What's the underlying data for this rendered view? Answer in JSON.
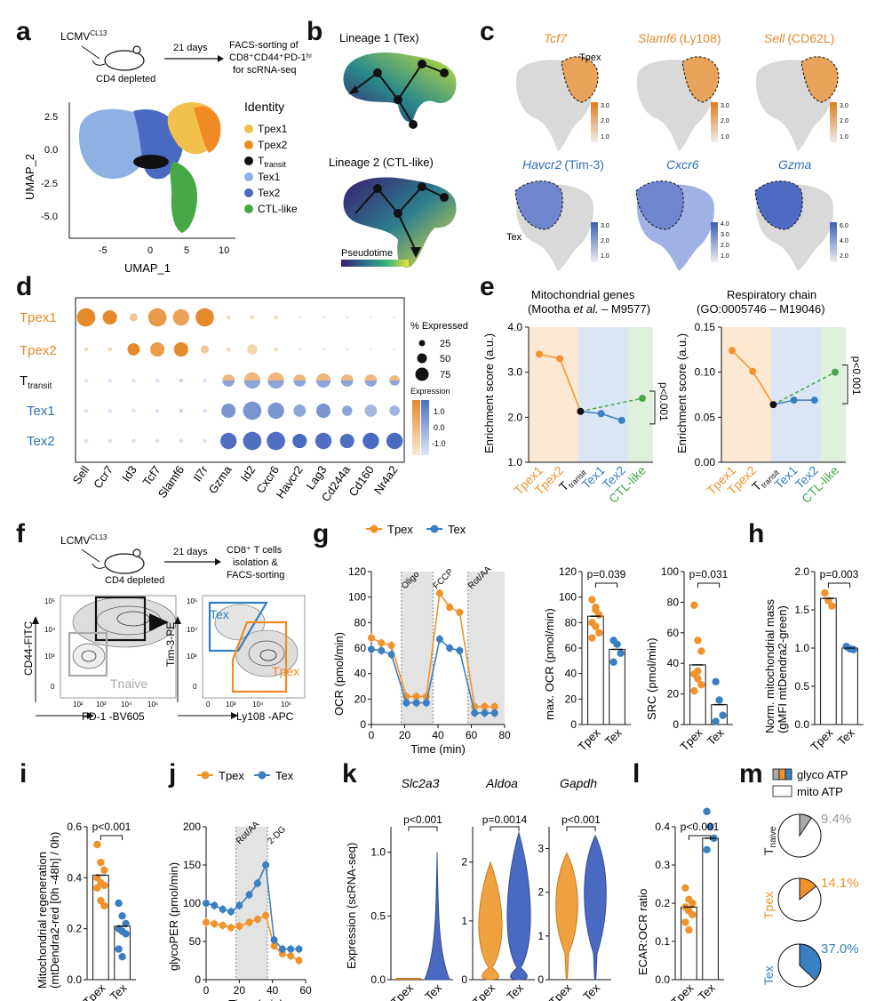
{
  "colors": {
    "tpex": "#f0932b",
    "tpex1": "#f2c04c",
    "tpex2": "#ef8a24",
    "ttransit": "#111111",
    "tex1": "#8fb0e3",
    "tex2": "#4a69c0",
    "ctl": "#46a847",
    "texBlue": "#3a7fc1"
  },
  "panels": [
    "a",
    "b",
    "c",
    "d",
    "e",
    "f",
    "g",
    "h",
    "i",
    "j",
    "k",
    "l",
    "m"
  ],
  "a": {
    "infection": "LCMV",
    "infection_sup": "CL13",
    "days": "21 days",
    "depletion": "CD4 depleted",
    "sorting_l1": "FACS-sorting of",
    "sorting_l2": "CD8⁺CD44⁺PD-1ʰⁱ",
    "sorting_l3": "for scRNA-seq",
    "xlabel": "UMAP_1",
    "ylabel": "UMAP_2",
    "xticks": [
      "-5",
      "0",
      "5",
      "10"
    ],
    "yticks": [
      "2.5",
      "0.0",
      "-2.5",
      "-5.0"
    ],
    "legend_title": "Identity",
    "legend": [
      "Tpex1",
      "Tpex2",
      "T",
      "Tex1",
      "Tex2",
      "CTL-like"
    ],
    "legend_sub": "transit"
  },
  "b": {
    "title1": "Lineage 1 (Tex)",
    "title2": "Lineage 2 (CTL-like)",
    "colorbar": "Pseudotime"
  },
  "c": {
    "genes_top": [
      "Tcf7",
      "Slamf6",
      "Sell"
    ],
    "genes_top_extra": [
      "",
      "(Ly108)",
      "(CD62L)"
    ],
    "genes_bottom": [
      "Havcr2",
      "Cxcr6",
      "Gzma"
    ],
    "genes_bottom_extra": [
      "(Tim-3)",
      "",
      ""
    ],
    "region_top": "Tpex",
    "region_bottom": "Tex",
    "scale_top": [
      "3.0",
      "2.0",
      "1.0"
    ],
    "scale_mid": [
      "3.0",
      "2.0",
      "1.0"
    ],
    "scale_right": [
      "3.0",
      "2.0",
      "1.0"
    ],
    "scale_b1": [
      "3.0",
      "2.0",
      "1.0"
    ],
    "scale_b2": [
      "4.0",
      "3.0",
      "2.0",
      "1.0"
    ],
    "scale_b3": [
      "6.0",
      "4.0",
      "2.0"
    ]
  },
  "d": {
    "rows": [
      "Tpex1",
      "Tpex2",
      "T",
      "Tex1",
      "Tex2"
    ],
    "row3_sub": "transit",
    "genes": [
      "Sell",
      "Ccr7",
      "Id3",
      "Tcf7",
      "Slamf6",
      "Il7r",
      "Gzma",
      "Id2",
      "Cxcr6",
      "Havcr2",
      "Lag3",
      "Cd244a",
      "Cd160",
      "Nr4a2"
    ],
    "legend_title": "% Expressed",
    "legend_sizes": [
      "25",
      "50",
      "75"
    ],
    "legend_expr": "Expression",
    "expr_ticks": [
      "1.0",
      "0.0",
      "-1.0"
    ]
  },
  "e": {
    "chart_data": [
      {
        "type": "line",
        "title": "Mitochondrial genes",
        "subtitle_pre": "(Mootha ",
        "subtitle_it": "et al.",
        "subtitle_post": " – M9577)",
        "ylabel": "Enrichment score (a.u.)",
        "ylim": [
          1.0,
          4.0
        ],
        "yticks": [
          "4.0",
          "3.0",
          "2.0",
          "1.0"
        ],
        "categories": [
          "Tpex1",
          "Tpex2",
          "T",
          "Tex1",
          "Tex2",
          "CTL-like"
        ],
        "values": [
          3.4,
          3.3,
          2.13,
          2.08,
          1.93,
          2.42
        ],
        "pvalue": "p<0.001"
      },
      {
        "type": "line",
        "title": "Respiratory chain",
        "subtitle": "(GO:0005746 – M19046)",
        "ylabel": "Enrichment score (a.u.)",
        "ylim": [
          0.0,
          0.15
        ],
        "yticks": [
          "0.15",
          "0.10",
          "0.05",
          "0.00"
        ],
        "categories": [
          "Tpex1",
          "Tpex2",
          "T",
          "Tex1",
          "Tex2",
          "CTL-like"
        ],
        "values": [
          0.124,
          0.101,
          0.064,
          0.069,
          0.069,
          0.1
        ],
        "pvalue": "p<0.001"
      }
    ],
    "cat_sub": "transit"
  },
  "f": {
    "infection": "LCMV",
    "infection_sup": "CL13",
    "days": "21 days",
    "depletion": "CD4 depleted",
    "sorting_l1": "CD8⁺ T cells",
    "sorting_l2": "isolation &",
    "sorting_l3": "FACS-sorting",
    "xlabel1": "PD-1 -BV605",
    "ylabel1": "CD44-FITC",
    "gate1": "Tnaive",
    "xlabel2": "Ly108 -APC",
    "ylabel2": "Tim-3-PE",
    "gate_tex": "Tex",
    "gate_tpex": "Tpex",
    "ticks": [
      "10²",
      "10³",
      "10⁴",
      "10⁵"
    ],
    "zero": "0"
  },
  "g": {
    "legend": [
      "Tpex",
      "Tex"
    ],
    "chart_data": {
      "type": "line",
      "xlabel": "Time (min)",
      "ylabel": "OCR (pmol/min)",
      "xlim": [
        0,
        80
      ],
      "ylim": [
        0,
        120
      ],
      "xticks": [
        "0",
        "20",
        "40",
        "60",
        "80"
      ],
      "yticks": [
        "0",
        "20",
        "40",
        "60",
        "80",
        "100",
        "120"
      ],
      "injections": [
        "Oligo",
        "FCCP",
        "Rot/AA"
      ],
      "x": [
        0,
        6,
        12,
        21,
        27,
        33,
        41,
        47,
        53,
        62,
        68,
        74
      ],
      "series": [
        {
          "name": "Tpex",
          "values": [
            68,
            64,
            62,
            22,
            22,
            22,
            103,
            92,
            88,
            14,
            14,
            14
          ]
        },
        {
          "name": "Tex",
          "values": [
            59,
            58,
            55,
            17,
            17,
            17,
            67,
            60,
            58,
            9,
            9,
            9
          ]
        }
      ]
    },
    "bar1": {
      "type": "bar",
      "ylabel": "max. OCR (pmol/min)",
      "ylim": [
        0,
        120
      ],
      "yticks": [
        "0",
        "20",
        "40",
        "60",
        "80",
        "100",
        "120"
      ],
      "categories": [
        "Tpex",
        "Tex"
      ],
      "values": [
        85,
        59
      ],
      "pvalue": "p=0.039"
    },
    "bar2": {
      "type": "bar",
      "ylabel": "SRC (pmol/min)",
      "ylim": [
        0,
        100
      ],
      "yticks": [
        "0",
        "20",
        "40",
        "60",
        "80",
        "100"
      ],
      "categories": [
        "Tpex",
        "Tex"
      ],
      "values": [
        39,
        13
      ],
      "pvalue": "p=0.031"
    }
  },
  "h": {
    "chart_data": {
      "type": "bar",
      "ylabel1": "Norm. mitochondrial mass",
      "ylabel2": "(gMFI mtDendra2-green)",
      "ylim": [
        0,
        2.0
      ],
      "yticks": [
        "0.0",
        "0.5",
        "1.0",
        "1.5",
        "2.0"
      ],
      "categories": [
        "Tpex",
        "Tex"
      ],
      "values": [
        1.65,
        1.0
      ],
      "pvalue": "p=0.003"
    }
  },
  "i": {
    "chart_data": {
      "type": "bar",
      "ylabel1": "Mitochondrial regeneration",
      "ylabel2": "(mtDendra2-red [0h -48h] / 0h)",
      "ylim": [
        0,
        0.6
      ],
      "yticks": [
        "0.0",
        "0.2",
        "0.4",
        "0.6"
      ],
      "categories": [
        "Tpex",
        "Tex"
      ],
      "values": [
        0.41,
        0.21
      ],
      "pvalue": "p<0.001"
    }
  },
  "j": {
    "legend": [
      "Tpex",
      "Tex"
    ],
    "chart_data": {
      "type": "line",
      "xlabel": "Time (min)",
      "ylabel": "glycoPER (pmol/min)",
      "xlim": [
        0,
        60
      ],
      "ylim": [
        0,
        200
      ],
      "xticks": [
        "0",
        "20",
        "40",
        "60"
      ],
      "yticks": [
        "0",
        "50",
        "100",
        "150",
        "200"
      ],
      "injections": [
        "Rot/AA",
        "2-DG"
      ],
      "x": [
        0,
        5,
        10,
        15,
        20,
        26,
        31,
        36,
        41,
        46,
        51,
        56
      ],
      "series": [
        {
          "name": "Tpex",
          "values": [
            75,
            73,
            71,
            68,
            70,
            75,
            79,
            84,
            44,
            34,
            31,
            25
          ]
        },
        {
          "name": "Tex",
          "values": [
            100,
            97,
            92,
            89,
            97,
            111,
            126,
            150,
            52,
            40,
            40,
            40
          ]
        }
      ]
    }
  },
  "k": {
    "ylabel": "Expression (scRNA-seq)",
    "genes": [
      "Slc2a3",
      "Aldoa",
      "Gapdh"
    ],
    "pvalues": [
      "p<0.001",
      "p=0.0014",
      "p<0.001"
    ],
    "categories": [
      "Tpex",
      "Tex"
    ],
    "yticks1": [
      "0.0",
      "0.5",
      "1.0"
    ],
    "yticks2": [
      "0",
      "1",
      "2"
    ],
    "yticks3": [
      "0",
      "1",
      "2",
      "3"
    ]
  },
  "l": {
    "chart_data": {
      "type": "bar",
      "ylabel": "ECAR:OCR ratio",
      "ylim": [
        0,
        0.4
      ],
      "yticks": [
        "0.0",
        "0.1",
        "0.2",
        "0.3",
        "0.4"
      ],
      "categories": [
        "Tpex",
        "Tex"
      ],
      "values": [
        0.19,
        0.37
      ],
      "pvalue": "p<0.001"
    }
  },
  "m": {
    "legend": [
      "glyco ATP",
      "mito ATP"
    ],
    "chart_data": {
      "type": "pie",
      "rows": [
        "T",
        "Tpex",
        "Tex"
      ],
      "row1_sub": "naive",
      "glyco_percent": [
        9.4,
        14.1,
        37.0
      ],
      "labels": [
        "9.4%",
        "14.1%",
        "37.0%"
      ]
    }
  }
}
